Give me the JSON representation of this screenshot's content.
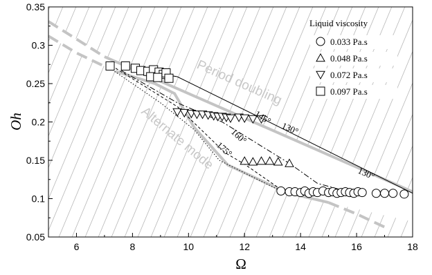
{
  "chart_data": {
    "type": "scatter",
    "xlabel": "Ω",
    "ylabel": "Oh",
    "xlim": [
      5,
      18
    ],
    "ylim": [
      0.05,
      0.35
    ],
    "x_ticks": [
      "6",
      "8",
      "10",
      "12",
      "14",
      "16",
      "18"
    ],
    "x_tick_values": [
      6,
      8,
      10,
      12,
      14,
      16,
      18
    ],
    "y_ticks": [
      "0.05",
      "0.1",
      "0.15",
      "0.2",
      "0.25",
      "0.3",
      "0.35"
    ],
    "y_tick_values": [
      0.05,
      0.1,
      0.15,
      0.2,
      0.25,
      0.3,
      0.35
    ],
    "legend": {
      "title": "Liquid viscosity",
      "position": "top-right",
      "entries": [
        {
          "label": "0.033 Pa.s",
          "marker": "circle"
        },
        {
          "label": "0.048 Pa.s",
          "marker": "triangle-up"
        },
        {
          "label": "0.072 Pa.s",
          "marker": "triangle-down"
        },
        {
          "label": "0.097 Pa.s",
          "marker": "square"
        }
      ]
    },
    "series": [
      {
        "name": "0.033 Pa.s",
        "marker": "circle",
        "points": [
          [
            13.3,
            0.11
          ],
          [
            13.6,
            0.109
          ],
          [
            13.8,
            0.109
          ],
          [
            14.0,
            0.108
          ],
          [
            14.15,
            0.11
          ],
          [
            14.3,
            0.107
          ],
          [
            14.45,
            0.109
          ],
          [
            14.6,
            0.108
          ],
          [
            14.8,
            0.11
          ],
          [
            15.0,
            0.108
          ],
          [
            15.15,
            0.109
          ],
          [
            15.3,
            0.107
          ],
          [
            15.45,
            0.108
          ],
          [
            15.6,
            0.109
          ],
          [
            15.75,
            0.108
          ],
          [
            15.9,
            0.107
          ],
          [
            16.05,
            0.109
          ],
          [
            16.2,
            0.108
          ],
          [
            16.7,
            0.107
          ],
          [
            17.0,
            0.107
          ],
          [
            17.3,
            0.107
          ],
          [
            17.7,
            0.106
          ]
        ]
      },
      {
        "name": "0.048 Pa.s",
        "marker": "triangle-up",
        "points": [
          [
            12.0,
            0.149
          ],
          [
            12.3,
            0.148
          ],
          [
            12.6,
            0.149
          ],
          [
            12.9,
            0.149
          ],
          [
            13.2,
            0.148
          ],
          [
            13.6,
            0.146
          ]
        ]
      },
      {
        "name": "0.072 Pa.s",
        "marker": "triangle-down",
        "points": [
          [
            9.6,
            0.213
          ],
          [
            9.85,
            0.212
          ],
          [
            10.1,
            0.211
          ],
          [
            10.3,
            0.21
          ],
          [
            10.5,
            0.21
          ],
          [
            10.7,
            0.209
          ],
          [
            10.9,
            0.208
          ],
          [
            11.05,
            0.207
          ],
          [
            11.2,
            0.207
          ],
          [
            11.35,
            0.206
          ],
          [
            11.5,
            0.205
          ],
          [
            11.8,
            0.206
          ],
          [
            12.0,
            0.205
          ],
          [
            12.3,
            0.204
          ],
          [
            12.6,
            0.204
          ]
        ]
      },
      {
        "name": "0.097 Pa.s",
        "marker": "square",
        "points": [
          [
            7.2,
            0.273
          ],
          [
            7.75,
            0.273
          ],
          [
            8.1,
            0.27
          ],
          [
            8.3,
            0.267
          ],
          [
            8.55,
            0.266
          ],
          [
            8.75,
            0.268
          ],
          [
            8.95,
            0.265
          ],
          [
            9.1,
            0.262
          ],
          [
            9.2,
            0.264
          ],
          [
            9.3,
            0.257
          ],
          [
            8.65,
            0.259
          ],
          [
            8.9,
            0.258
          ]
        ]
      }
    ],
    "boundaries": [
      {
        "label": "Period doubling",
        "style": "solid",
        "points": [
          [
            7.0,
            0.285
          ],
          [
            18.0,
            0.109
          ]
        ]
      },
      {
        "label": "Period doubling (dashed)",
        "style": "dashed",
        "points": [
          [
            5.0,
            0.331
          ],
          [
            7.0,
            0.285
          ]
        ]
      },
      {
        "label": "Alternate mode",
        "style": "solid",
        "points": [
          [
            7.4,
            0.266
          ],
          [
            8.8,
            0.25
          ],
          [
            9.5,
            0.237
          ],
          [
            10.2,
            0.193
          ],
          [
            11.4,
            0.144
          ],
          [
            13.5,
            0.108
          ],
          [
            15.0,
            0.095
          ]
        ]
      },
      {
        "label": "Alternate mode (dashed)",
        "style": "dashed",
        "points": [
          [
            5.0,
            0.312
          ],
          [
            6.0,
            0.29
          ],
          [
            7.2,
            0.269
          ]
        ],
        "extra": [
          [
            15.0,
            0.095
          ],
          [
            16.0,
            0.08
          ],
          [
            17.0,
            0.063
          ]
        ]
      }
    ],
    "angle_lines": [
      {
        "label": "130°",
        "style": "solid",
        "points": [
          [
            8.3,
            0.267
          ],
          [
            9.6,
            0.259
          ],
          [
            12.6,
            0.205
          ],
          [
            18.0,
            0.107
          ]
        ]
      },
      {
        "label": "145°",
        "style": "dashdot",
        "points": [
          [
            7.6,
            0.267
          ],
          [
            9.6,
            0.225
          ],
          [
            11.2,
            0.2
          ],
          [
            13.6,
            0.146
          ],
          [
            14.6,
            0.12
          ],
          [
            15.8,
            0.108
          ]
        ]
      },
      {
        "label": "160°",
        "style": "dashed",
        "points": [
          [
            7.4,
            0.27
          ],
          [
            9.6,
            0.22
          ],
          [
            11.3,
            0.16
          ],
          [
            12.0,
            0.145
          ],
          [
            13.3,
            0.112
          ]
        ]
      },
      {
        "label": "175°",
        "style": "dotted",
        "points": [
          [
            7.2,
            0.27
          ],
          [
            9.0,
            0.225
          ],
          [
            10.2,
            0.19
          ],
          [
            11.1,
            0.15
          ],
          [
            12.3,
            0.128
          ],
          [
            13.3,
            0.11
          ]
        ]
      }
    ],
    "annotations": [
      {
        "text": "Period doubling",
        "kind": "region"
      },
      {
        "text": "Alternate mode",
        "kind": "region"
      },
      {
        "text": "130°",
        "kind": "angle"
      },
      {
        "text": "145°",
        "kind": "angle"
      },
      {
        "text": "160°",
        "kind": "angle"
      },
      {
        "text": "175°",
        "kind": "angle"
      },
      {
        "text": "130°",
        "kind": "angle"
      }
    ]
  }
}
